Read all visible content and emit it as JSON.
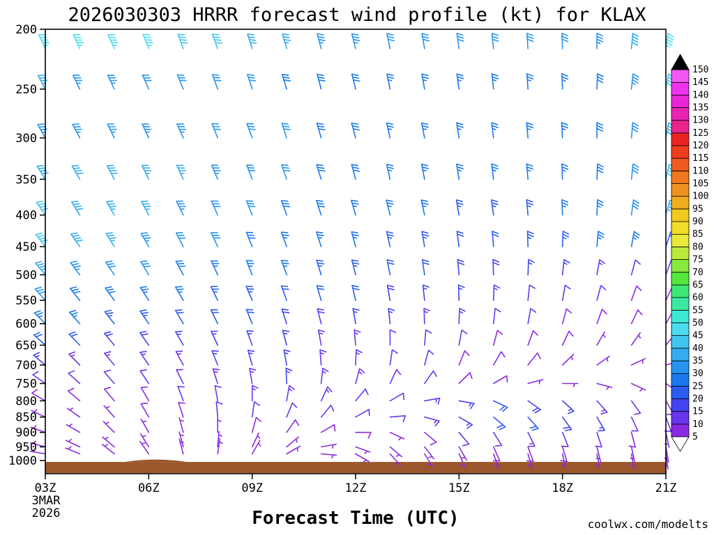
{
  "title": "2026030303 HRRR forecast wind profile (kt) for KLAX",
  "xlabel": "Forecast Time (UTC)",
  "watermark": "coolwx.com/modelts",
  "colors": {
    "watermark": "#e06e6e",
    "axis": "#000000",
    "ground": "#9b572b"
  },
  "y_ticks": [
    200,
    250,
    300,
    350,
    400,
    450,
    500,
    550,
    600,
    650,
    700,
    750,
    800,
    850,
    900,
    950,
    1000
  ],
  "x_ticks": [
    "03Z",
    "06Z",
    "09Z",
    "12Z",
    "15Z",
    "18Z",
    "21Z"
  ],
  "x_tick_hours": [
    3,
    6,
    9,
    12,
    15,
    18,
    21
  ],
  "x_date_lines": [
    "3MAR",
    "2026"
  ],
  "colorbar": {
    "values": [
      5,
      10,
      15,
      20,
      25,
      30,
      35,
      40,
      45,
      50,
      55,
      60,
      65,
      70,
      75,
      80,
      85,
      90,
      95,
      100,
      105,
      110,
      115,
      120,
      125,
      130,
      135,
      140,
      145,
      150
    ],
    "colors": [
      "#8a2be2",
      "#6a35ef",
      "#4343ef",
      "#2b5cef",
      "#1a78ef",
      "#2694ef",
      "#33adef",
      "#41c5ef",
      "#4edcf0",
      "#3ce9d3",
      "#3ce9a2",
      "#3ce972",
      "#53e93c",
      "#87e93c",
      "#bbe93c",
      "#e9e93c",
      "#f0de29",
      "#f0ca1f",
      "#f0ad1f",
      "#f0921f",
      "#f0771f",
      "#f05b1f",
      "#f03d1f",
      "#e92424",
      "#e9248b",
      "#e924b5",
      "#e924d9",
      "#ee33ee",
      "#f557f5"
    ],
    "over_color": "#000000",
    "under_color": "#ffffff"
  },
  "chart_data": {
    "type": "wind-barb-time-height",
    "title": "2026030303 HRRR forecast wind profile (kt) for KLAX",
    "xlabel": "Forecast Time (UTC)",
    "units": "kt",
    "x_hours": [
      3,
      4,
      5,
      6,
      7,
      8,
      9,
      10,
      11,
      12,
      13,
      14,
      15,
      16,
      17,
      18,
      19,
      20,
      21
    ],
    "pressure_axis_range": [
      200,
      1050
    ],
    "ground": {
      "top_hpa": 1005,
      "bump_center_hour": 6.2,
      "bump_width_hours": 1.8,
      "bump_top_hpa": 987
    },
    "levels": [
      {
        "p": 215,
        "dirs": [
          335,
          335,
          336,
          338,
          340,
          340,
          342,
          344,
          345,
          346,
          348,
          350,
          352,
          354,
          356,
          358,
          0,
          5,
          8
        ],
        "spds": [
          45,
          46,
          47,
          45,
          42,
          40,
          38,
          36,
          34,
          33,
          32,
          31,
          30,
          30,
          30,
          31,
          33,
          38,
          45
        ]
      },
      {
        "p": 250,
        "dirs": [
          332,
          334,
          335,
          336,
          338,
          340,
          342,
          343,
          345,
          346,
          348,
          350,
          352,
          354,
          356,
          358,
          2,
          6,
          10
        ],
        "spds": [
          35,
          34,
          33,
          32,
          31,
          30,
          30,
          29,
          28,
          28,
          27,
          27,
          26,
          26,
          26,
          27,
          29,
          33,
          40
        ]
      },
      {
        "p": 300,
        "dirs": [
          330,
          332,
          334,
          335,
          336,
          338,
          340,
          342,
          344,
          345,
          347,
          349,
          351,
          353,
          355,
          357,
          0,
          5,
          10
        ],
        "spds": [
          33,
          34,
          34,
          33,
          33,
          32,
          31,
          30,
          29,
          28,
          27,
          27,
          26,
          26,
          26,
          27,
          28,
          32,
          38
        ]
      },
      {
        "p": 350,
        "dirs": [
          328,
          330,
          332,
          334,
          335,
          337,
          339,
          341,
          343,
          345,
          347,
          349,
          351,
          353,
          355,
          358,
          2,
          6,
          12
        ],
        "spds": [
          38,
          39,
          38,
          36,
          35,
          34,
          32,
          31,
          29,
          28,
          27,
          26,
          25,
          25,
          25,
          26,
          28,
          32,
          40
        ]
      },
      {
        "p": 400,
        "dirs": [
          325,
          328,
          330,
          332,
          334,
          336,
          338,
          340,
          342,
          344,
          346,
          348,
          350,
          352,
          355,
          358,
          2,
          8,
          15
        ],
        "spds": [
          40,
          39,
          37,
          35,
          34,
          32,
          31,
          29,
          28,
          27,
          26,
          25,
          24,
          24,
          24,
          25,
          27,
          30,
          35
        ]
      },
      {
        "p": 450,
        "dirs": [
          322,
          325,
          328,
          330,
          333,
          335,
          338,
          340,
          342,
          345,
          347,
          350,
          352,
          355,
          358,
          2,
          5,
          10,
          18
        ],
        "spds": [
          40,
          38,
          36,
          34,
          32,
          30,
          29,
          27,
          26,
          25,
          24,
          23,
          22,
          22,
          23,
          24,
          25,
          27,
          22
        ]
      },
      {
        "p": 500,
        "dirs": [
          320,
          323,
          326,
          329,
          332,
          335,
          338,
          340,
          343,
          346,
          349,
          352,
          355,
          358,
          2,
          6,
          10,
          15,
          20
        ],
        "spds": [
          35,
          34,
          32,
          30,
          29,
          27,
          26,
          25,
          24,
          23,
          22,
          21,
          19,
          18,
          16,
          15,
          13,
          12,
          10
        ]
      },
      {
        "p": 550,
        "dirs": [
          318,
          321,
          324,
          327,
          330,
          334,
          337,
          340,
          344,
          347,
          350,
          354,
          358,
          2,
          6,
          10,
          15,
          20,
          25
        ],
        "spds": [
          30,
          29,
          28,
          26,
          25,
          24,
          23,
          22,
          21,
          20,
          18,
          16,
          15,
          13,
          12,
          11,
          10,
          9,
          8
        ]
      },
      {
        "p": 600,
        "dirs": [
          315,
          318,
          322,
          326,
          330,
          334,
          338,
          342,
          346,
          350,
          354,
          358,
          2,
          6,
          10,
          15,
          20,
          25,
          30
        ],
        "spds": [
          26,
          25,
          24,
          23,
          22,
          21,
          20,
          19,
          18,
          17,
          15,
          14,
          13,
          12,
          10,
          9,
          8,
          8,
          7
        ]
      },
      {
        "p": 650,
        "dirs": [
          312,
          316,
          320,
          325,
          330,
          335,
          340,
          345,
          350,
          355,
          0,
          5,
          10,
          15,
          20,
          25,
          30,
          35,
          40
        ],
        "spds": [
          21,
          20,
          19,
          18,
          17,
          17,
          16,
          15,
          14,
          13,
          12,
          11,
          10,
          9,
          8,
          8,
          7,
          7,
          6
        ]
      },
      {
        "p": 700,
        "dirs": [
          310,
          315,
          320,
          326,
          332,
          338,
          344,
          350,
          356,
          2,
          8,
          15,
          22,
          30,
          38,
          46,
          55,
          65,
          75
        ],
        "spds": [
          15,
          14,
          14,
          13,
          14,
          15,
          15,
          15,
          14,
          13,
          12,
          11,
          9,
          8,
          8,
          7,
          7,
          6,
          5
        ]
      },
      {
        "p": 750,
        "dirs": [
          305,
          312,
          319,
          326,
          334,
          342,
          350,
          358,
          6,
          15,
          25,
          35,
          45,
          60,
          75,
          90,
          105,
          115,
          125
        ],
        "spds": [
          11,
          10,
          10,
          11,
          12,
          13,
          14,
          15,
          14,
          13,
          12,
          10,
          9,
          8,
          7,
          7,
          6,
          6,
          5
        ]
      },
      {
        "p": 800,
        "dirs": [
          300,
          310,
          320,
          330,
          340,
          350,
          0,
          10,
          25,
          40,
          60,
          80,
          100,
          115,
          125,
          132,
          138,
          144,
          150
        ],
        "spds": [
          8,
          8,
          9,
          9,
          10,
          12,
          13,
          14,
          13,
          12,
          11,
          14,
          17,
          20,
          18,
          15,
          13,
          10,
          8
        ]
      },
      {
        "p": 850,
        "dirs": [
          295,
          305,
          318,
          330,
          342,
          355,
          8,
          22,
          40,
          60,
          85,
          105,
          120,
          130,
          138,
          144,
          150,
          155,
          160
        ],
        "spds": [
          6,
          6,
          7,
          8,
          9,
          10,
          11,
          12,
          12,
          11,
          10,
          13,
          16,
          20,
          22,
          19,
          15,
          12,
          10
        ]
      },
      {
        "p": 900,
        "dirs": [
          290,
          300,
          315,
          330,
          345,
          0,
          15,
          35,
          60,
          90,
          115,
          130,
          140,
          148,
          154,
          158,
          162,
          165,
          168
        ],
        "spds": [
          5,
          5,
          5,
          6,
          6,
          7,
          8,
          8,
          8,
          8,
          7,
          8,
          10,
          12,
          13,
          12,
          10,
          8,
          7
        ]
      },
      {
        "p": 950,
        "dirs": [
          285,
          295,
          310,
          328,
          345,
          5,
          25,
          50,
          80,
          110,
          130,
          142,
          150,
          156,
          160,
          163,
          166,
          168,
          170
        ],
        "spds": [
          4,
          4,
          5,
          5,
          5,
          6,
          6,
          7,
          7,
          7,
          6,
          7,
          7,
          8,
          8,
          8,
          7,
          6,
          5
        ]
      },
      {
        "p": 975,
        "dirs": [
          280,
          292,
          308,
          325,
          345,
          8,
          30,
          60,
          95,
          120,
          138,
          148,
          155,
          160,
          164,
          167,
          169,
          170,
          172
        ],
        "spds": [
          3,
          3,
          4,
          4,
          5,
          5,
          5,
          6,
          6,
          6,
          5,
          5,
          6,
          6,
          6,
          6,
          5,
          5,
          4
        ]
      }
    ]
  }
}
